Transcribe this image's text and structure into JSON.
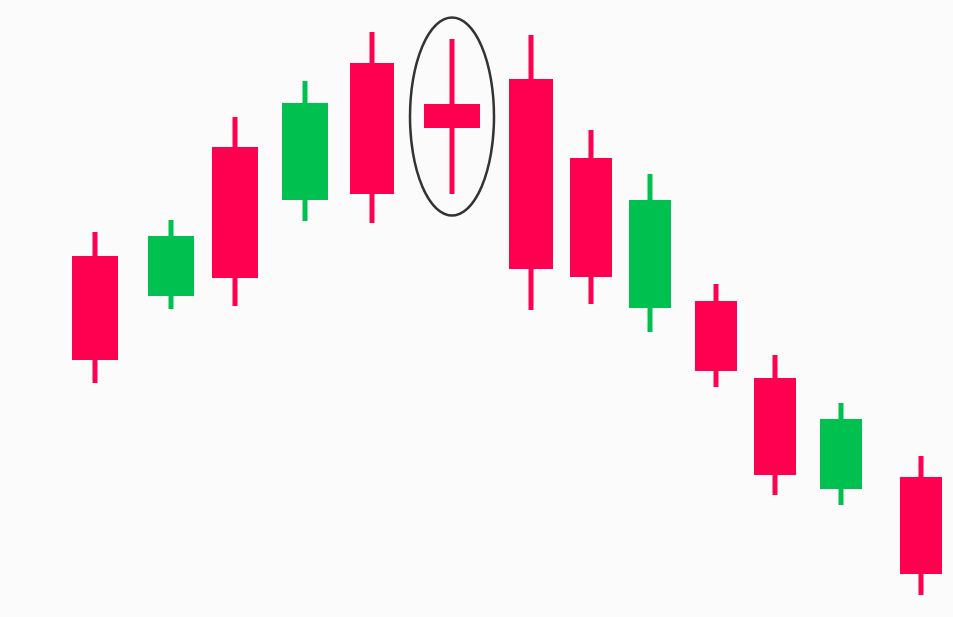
{
  "chart_data": {
    "type": "candlestick",
    "title": "",
    "xlabel": "",
    "ylabel": "",
    "ylim": [
      0,
      617
    ],
    "grid": false,
    "legend": "none",
    "colors": {
      "up": "#00c050",
      "down": "#ff0050",
      "highlight_outline": "#333333"
    },
    "candles": [
      {
        "direction": "down",
        "high": 385,
        "open": 361,
        "close": 257,
        "low": 234
      },
      {
        "direction": "up",
        "high": 397,
        "open": 321,
        "close": 381,
        "low": 308
      },
      {
        "direction": "down",
        "high": 500,
        "open": 470,
        "close": 339,
        "low": 311
      },
      {
        "direction": "up",
        "high": 536,
        "open": 417,
        "close": 514,
        "low": 396
      },
      {
        "direction": "down",
        "high": 585,
        "open": 554,
        "close": 423,
        "low": 394
      },
      {
        "direction": "down",
        "high": 578,
        "open": 513,
        "close": 489,
        "low": 423,
        "highlighted": true
      },
      {
        "direction": "down",
        "high": 582,
        "open": 538,
        "close": 348,
        "low": 307
      },
      {
        "direction": "down",
        "high": 487,
        "open": 459,
        "close": 340,
        "low": 313
      },
      {
        "direction": "up",
        "high": 443,
        "open": 309,
        "close": 417,
        "low": 285
      },
      {
        "direction": "down",
        "high": 333,
        "open": 316,
        "close": 246,
        "low": 230
      },
      {
        "direction": "down",
        "high": 262,
        "open": 239,
        "close": 142,
        "low": 122
      },
      {
        "direction": "up",
        "high": 214,
        "open": 128,
        "close": 198,
        "low": 112
      },
      {
        "direction": "down",
        "high": 161,
        "open": 140,
        "close": 43,
        "low": 22
      }
    ]
  }
}
